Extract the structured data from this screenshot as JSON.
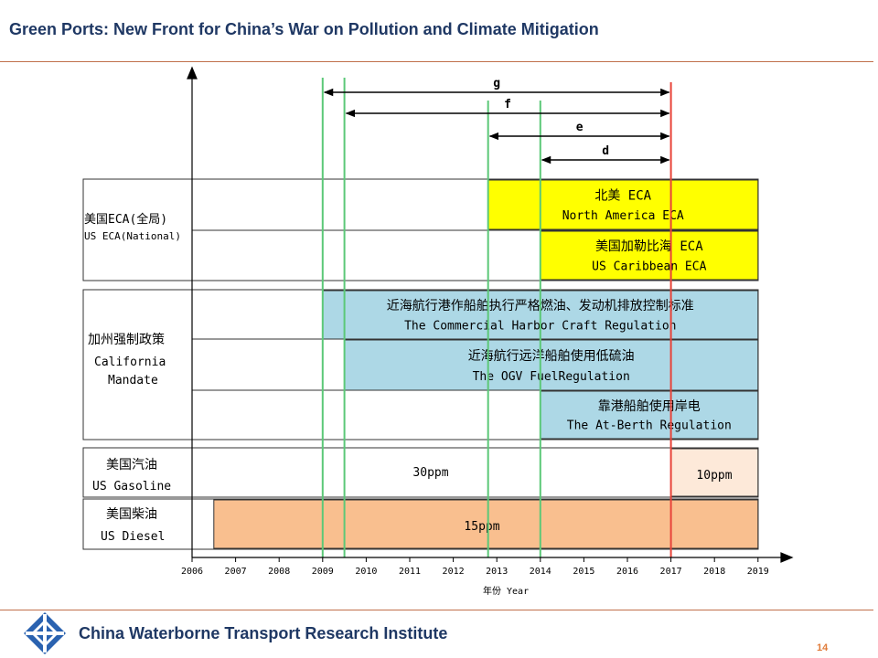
{
  "header": {
    "title": "Green Ports: New Front for China’s War on Pollution and Climate Mitigation"
  },
  "footer": {
    "org": "China Waterborne Transport Research Institute",
    "page": "14"
  },
  "timeline": {
    "axis": {
      "years": [
        "2006",
        "2007",
        "2008",
        "2009",
        "2010",
        "2011",
        "2012",
        "2013",
        "2014",
        "2015",
        "2016",
        "2017",
        "2018",
        "2019"
      ],
      "label": "年份 Year"
    },
    "groups": [
      {
        "id": "eca",
        "zh": "美国ECA(全局)",
        "en": "US ECA(National)"
      },
      {
        "id": "ca",
        "zh": "加州强制政策",
        "en_lines": [
          "California",
          "Mandate"
        ]
      },
      {
        "id": "gas",
        "zh": "美国汽油",
        "en": "US Gasoline"
      },
      {
        "id": "diesel",
        "zh": "美国柴油",
        "en": "US Diesel"
      }
    ],
    "bars": [
      {
        "id": "na-eca",
        "zh": "北美 ECA",
        "en": "North America ECA",
        "color": "#ffff00",
        "start": 2012.8,
        "end": 2019
      },
      {
        "id": "caribbean-eca",
        "zh": "美国加勒比海 ECA",
        "en": "US Caribbean ECA",
        "color": "#ffff00",
        "start": 2014,
        "end": 2019
      },
      {
        "id": "harbor-craft",
        "zh": "近海航行港作船舶执行严格燃油、发动机排放控制标准",
        "en": "The Commercial Harbor Craft Regulation",
        "color": "#add8e6",
        "start": 2009,
        "end": 2019
      },
      {
        "id": "ogv-fuel",
        "zh": "近海航行远洋船舶使用低硫油",
        "en": "The OGV FuelRegulation",
        "color": "#add8e6",
        "start": 2009.5,
        "end": 2019
      },
      {
        "id": "at-berth",
        "zh": "靠港船舶使用岸电",
        "en": "The At-Berth Regulation",
        "color": "#add8e6",
        "start": 2014,
        "end": 2019
      },
      {
        "id": "gas-30",
        "label": "30ppm",
        "color": "#ffffff",
        "start": 2006,
        "end": 2017
      },
      {
        "id": "gas-10",
        "label": "10ppm",
        "color": "#fde9d9",
        "start": 2017,
        "end": 2019
      },
      {
        "id": "diesel-15",
        "label": "15ppm",
        "color": "#f9bf8f",
        "start": 2006.5,
        "end": 2019
      }
    ],
    "markers": [
      {
        "year": 2009.0,
        "color": "#5cc878"
      },
      {
        "year": 2009.5,
        "color": "#5cc878"
      },
      {
        "year": 2012.8,
        "color": "#5cc878"
      },
      {
        "year": 2014.0,
        "color": "#5cc878"
      },
      {
        "year": 2017.0,
        "color": "#e8443a"
      }
    ],
    "intervals": [
      {
        "label": "g",
        "start": 2009.0,
        "end": 2017.0
      },
      {
        "label": "f",
        "start": 2009.5,
        "end": 2017.0
      },
      {
        "label": "e",
        "start": 2012.8,
        "end": 2017.0
      },
      {
        "label": "d",
        "start": 2014.0,
        "end": 2017.0
      }
    ]
  }
}
